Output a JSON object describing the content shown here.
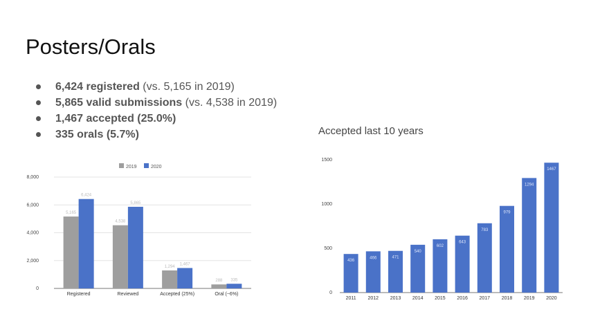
{
  "slide": {
    "title": "Posters/Orals",
    "bullets": [
      {
        "bold": "6,424 registered",
        "rest": " (vs. 5,165 in 2019)"
      },
      {
        "bold": "5,865 valid submissions",
        "rest": " (vs. 4,538 in 2019)"
      },
      {
        "bold": "1,467 accepted (25.0%)",
        "rest": ""
      },
      {
        "bold": "335 orals (5.7%)",
        "rest": ""
      }
    ],
    "right_chart_title": "Accepted last 10 years"
  },
  "chart_data": [
    {
      "type": "bar",
      "title": "",
      "categories": [
        "Registered",
        "Reviewed",
        "Accepted (25%)",
        "Oral (~6%)"
      ],
      "series": [
        {
          "name": "2019",
          "color": "#9e9e9e",
          "values": [
            5165,
            4538,
            1294,
            288
          ],
          "labels": [
            "5,165",
            "4,538",
            "1,294",
            "288"
          ]
        },
        {
          "name": "2020",
          "color": "#4a72c8",
          "values": [
            6424,
            5865,
            1467,
            335
          ],
          "labels": [
            "6,424",
            "5,865",
            "1,467",
            "335"
          ]
        }
      ],
      "yticks": [
        "0",
        "2,000",
        "4,000",
        "6,000",
        "8,000"
      ],
      "ylim": [
        0,
        8000
      ],
      "legend": "top",
      "grid": true
    },
    {
      "type": "bar",
      "title": "Accepted last 10 years",
      "categories": [
        "2011",
        "2012",
        "2013",
        "2014",
        "2015",
        "2016",
        "2017",
        "2018",
        "2019",
        "2020"
      ],
      "series": [
        {
          "name": "",
          "color": "#4a72c8",
          "values": [
            436,
            466,
            471,
            540,
            602,
            643,
            783,
            979,
            1294,
            1467
          ]
        }
      ],
      "yticks": [
        "0",
        "500",
        "1000",
        "1500"
      ],
      "ylim": [
        0,
        1500
      ],
      "legend": "none",
      "grid": false
    }
  ]
}
